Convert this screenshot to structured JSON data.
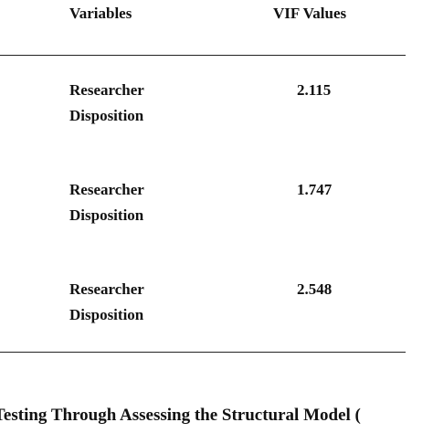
{
  "table": {
    "headers": {
      "variables": "Variables",
      "vif": "VIF Values"
    },
    "rows": [
      {
        "line1": "Researcher",
        "line2": "Disposition",
        "vif": "2.115"
      },
      {
        "line1": "Researcher",
        "line2": "Disposition",
        "vif": "1.747"
      },
      {
        "line1": "Researcher",
        "line2": "Disposition",
        "vif": "2.548"
      }
    ]
  },
  "caption": "Testing Through Assessing the Structural Model ("
}
